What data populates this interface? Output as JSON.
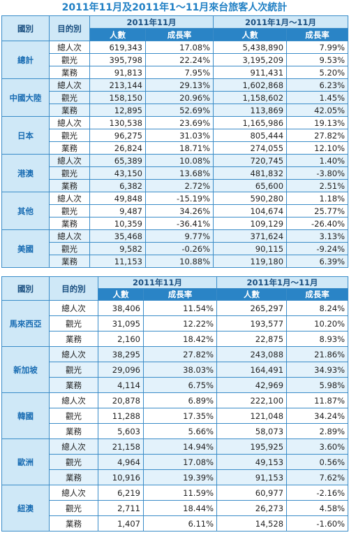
{
  "title": "2011年11月及2011年1～11月來台旅客人次統計",
  "tables": [
    {
      "header": {
        "country": "國別",
        "purpose": "目的別",
        "periods": [
          "2011年11月",
          "2011年1月～11月"
        ],
        "subheaders": [
          "人數",
          "成長率",
          "人數",
          "成長率"
        ]
      },
      "groups": [
        {
          "country": "總計",
          "rows": [
            [
              "總人次",
              "619,343",
              "17.08%",
              "5,438,890",
              "7.99%"
            ],
            [
              "觀光",
              "395,798",
              "22.24%",
              "3,195,209",
              "9.53%"
            ],
            [
              "業務",
              "91,813",
              "7.95%",
              "911,431",
              "5.20%"
            ]
          ]
        },
        {
          "country": "中國大陸",
          "rows": [
            [
              "總人次",
              "213,144",
              "29.13%",
              "1,602,868",
              "6.23%"
            ],
            [
              "觀光",
              "158,150",
              "20.96%",
              "1,158,602",
              "1.45%"
            ],
            [
              "業務",
              "12,895",
              "52.69%",
              "113,869",
              "42.05%"
            ]
          ]
        },
        {
          "country": "日本",
          "rows": [
            [
              "總人次",
              "130,538",
              "23.69%",
              "1,165,986",
              "19.13%"
            ],
            [
              "觀光",
              "96,275",
              "31.03%",
              "805,444",
              "27.82%"
            ],
            [
              "業務",
              "26,824",
              "18.71%",
              "274,055",
              "12.10%"
            ]
          ]
        },
        {
          "country": "港澳",
          "rows": [
            [
              "總人次",
              "65,389",
              "10.08%",
              "720,745",
              "1.40%"
            ],
            [
              "觀光",
              "43,150",
              "13.68%",
              "481,832",
              "-3.80%"
            ],
            [
              "業務",
              "6,382",
              "2.72%",
              "65,600",
              "2.51%"
            ]
          ]
        },
        {
          "country": "其他",
          "rows": [
            [
              "總人次",
              "49,848",
              "-15.19%",
              "590,280",
              "1.18%"
            ],
            [
              "觀光",
              "9,487",
              "34.26%",
              "104,674",
              "25.77%"
            ],
            [
              "業務",
              "10,359",
              "-36.41%",
              "109,129",
              "-26.40%"
            ]
          ]
        },
        {
          "country": "美國",
          "rows": [
            [
              "總人次",
              "35,468",
              "9.77%",
              "371,624",
              "3.13%"
            ],
            [
              "觀光",
              "9,582",
              "-0.26%",
              "90,115",
              "-9.24%"
            ],
            [
              "業務",
              "11,153",
              "10.88%",
              "119,180",
              "6.39%"
            ]
          ]
        }
      ]
    },
    {
      "header": {
        "country": "國別",
        "purpose": "目的別",
        "periods": [
          "2011年11月",
          "2011年1月～11月"
        ],
        "subheaders": [
          "人數",
          "成長率",
          "人數",
          "成長率"
        ]
      },
      "groups": [
        {
          "country": "馬來西亞",
          "rows": [
            [
              "總人次",
              "38,406",
              "11.54%",
              "265,297",
              "8.24%"
            ],
            [
              "觀光",
              "31,095",
              "12.22%",
              "193,577",
              "10.20%"
            ],
            [
              "業務",
              "2,160",
              "18.42%",
              "22,875",
              "8.93%"
            ]
          ]
        },
        {
          "country": "新加坡",
          "rows": [
            [
              "總人次",
              "38,295",
              "27.82%",
              "243,088",
              "21.86%"
            ],
            [
              "觀光",
              "29,096",
              "38.03%",
              "164,491",
              "34.93%"
            ],
            [
              "業務",
              "4,114",
              "6.75%",
              "42,969",
              "5.98%"
            ]
          ]
        },
        {
          "country": "韓國",
          "rows": [
            [
              "總人次",
              "20,878",
              "6.89%",
              "222,100",
              "11.87%"
            ],
            [
              "觀光",
              "11,288",
              "17.35%",
              "121,048",
              "34.24%"
            ],
            [
              "業務",
              "5,603",
              "5.66%",
              "58,073",
              "2.89%"
            ]
          ]
        },
        {
          "country": "歐洲",
          "rows": [
            [
              "總人次",
              "21,158",
              "14.94%",
              "195,925",
              "3.60%"
            ],
            [
              "觀光",
              "4,964",
              "17.08%",
              "49,153",
              "0.56%"
            ],
            [
              "業務",
              "10,916",
              "19.39%",
              "91,153",
              "7.62%"
            ]
          ]
        },
        {
          "country": "紐澳",
          "rows": [
            [
              "總人次",
              "6,219",
              "11.59%",
              "60,977",
              "-2.16%"
            ],
            [
              "觀光",
              "2,711",
              "18.44%",
              "26,273",
              "4.58%"
            ],
            [
              "業務",
              "1,407",
              "6.11%",
              "14,528",
              "-1.60%"
            ]
          ]
        }
      ]
    }
  ]
}
